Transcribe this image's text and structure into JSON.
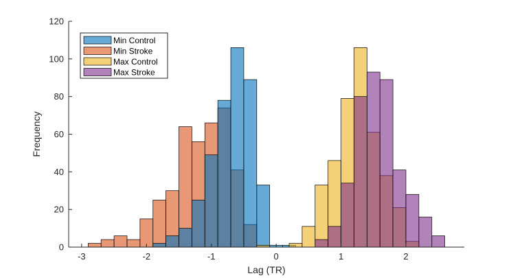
{
  "chart_data": {
    "type": "histogram",
    "xlabel": "Lag (TR)",
    "ylabel": "Frequency",
    "xlim": [
      -3.2,
      2.9
    ],
    "ylim": [
      0,
      120
    ],
    "xticks": [
      -3,
      -2,
      -1,
      0,
      1,
      2
    ],
    "yticks": [
      0,
      20,
      40,
      60,
      80,
      100,
      120
    ],
    "bin_width": 0.2,
    "grid": false,
    "legend_position": "top-left",
    "series": [
      {
        "name": "Min Stroke",
        "color": "#D95319",
        "bins": [
          {
            "x0": -2.9,
            "count": 2
          },
          {
            "x0": -2.7,
            "count": 4
          },
          {
            "x0": -2.5,
            "count": 6
          },
          {
            "x0": -2.3,
            "count": 4
          },
          {
            "x0": -2.1,
            "count": 15
          },
          {
            "x0": -1.9,
            "count": 25
          },
          {
            "x0": -1.7,
            "count": 30
          },
          {
            "x0": -1.5,
            "count": 64
          },
          {
            "x0": -1.3,
            "count": 56
          },
          {
            "x0": -1.1,
            "count": 66
          },
          {
            "x0": -0.9,
            "count": 74
          },
          {
            "x0": -0.7,
            "count": 41
          },
          {
            "x0": -0.5,
            "count": 12
          }
        ]
      },
      {
        "name": "Min Control",
        "color": "#0072BD",
        "bins": [
          {
            "x0": -1.9,
            "count": 2
          },
          {
            "x0": -1.7,
            "count": 6
          },
          {
            "x0": -1.5,
            "count": 10
          },
          {
            "x0": -1.3,
            "count": 25
          },
          {
            "x0": -1.1,
            "count": 49
          },
          {
            "x0": -0.9,
            "count": 78
          },
          {
            "x0": -0.7,
            "count": 106
          },
          {
            "x0": -0.5,
            "count": 89
          },
          {
            "x0": -0.3,
            "count": 33
          },
          {
            "x0": -0.1,
            "count": 1
          },
          {
            "x0": 0.1,
            "count": 1
          }
        ]
      },
      {
        "name": "Max Control",
        "color": "#EDB120",
        "bins": [
          {
            "x0": -0.3,
            "count": 1
          },
          {
            "x0": 0.2,
            "count": 2
          },
          {
            "x0": 0.4,
            "count": 11
          },
          {
            "x0": 0.6,
            "count": 33
          },
          {
            "x0": 0.8,
            "count": 46
          },
          {
            "x0": 1.0,
            "count": 79
          },
          {
            "x0": 1.2,
            "count": 106
          },
          {
            "x0": 1.4,
            "count": 61
          },
          {
            "x0": 1.6,
            "count": 38
          },
          {
            "x0": 1.8,
            "count": 21
          },
          {
            "x0": 2.0,
            "count": 3
          }
        ]
      },
      {
        "name": "Max Stroke",
        "color": "#7E2F8E",
        "bins": [
          {
            "x0": 0.6,
            "count": 4
          },
          {
            "x0": 0.8,
            "count": 11
          },
          {
            "x0": 1.0,
            "count": 34
          },
          {
            "x0": 1.2,
            "count": 80
          },
          {
            "x0": 1.4,
            "count": 93
          },
          {
            "x0": 1.6,
            "count": 89
          },
          {
            "x0": 1.8,
            "count": 41
          },
          {
            "x0": 2.0,
            "count": 28
          },
          {
            "x0": 2.2,
            "count": 16
          },
          {
            "x0": 2.4,
            "count": 6
          }
        ]
      }
    ],
    "legend": [
      "Min Control",
      "Min Stroke",
      "Max Control",
      "Max Stroke"
    ]
  }
}
